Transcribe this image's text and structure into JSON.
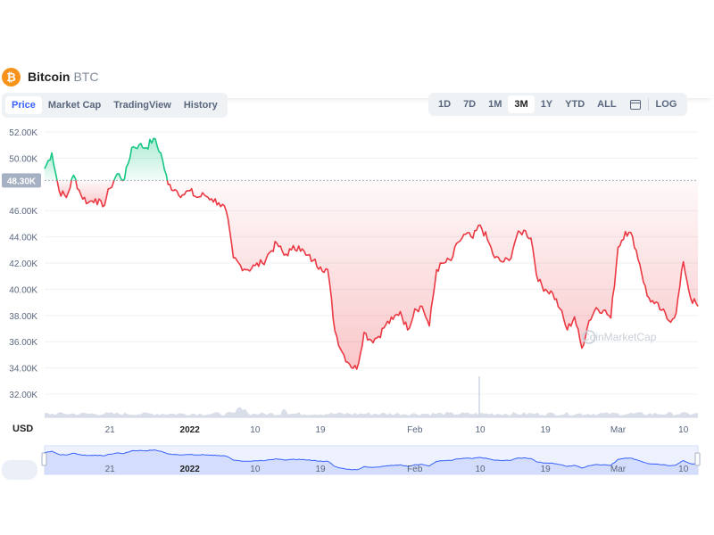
{
  "header": {
    "coin_glyph": "₿",
    "name": "Bitcoin",
    "symbol": "BTC"
  },
  "tabs": [
    {
      "label": "Price",
      "active": true
    },
    {
      "label": "Market Cap",
      "active": false
    },
    {
      "label": "TradingView",
      "active": false
    },
    {
      "label": "History",
      "active": false
    }
  ],
  "ranges": [
    {
      "label": "1D",
      "active": false
    },
    {
      "label": "7D",
      "active": false
    },
    {
      "label": "1M",
      "active": false
    },
    {
      "label": "3M",
      "active": true
    },
    {
      "label": "1Y",
      "active": false
    },
    {
      "label": "YTD",
      "active": false
    },
    {
      "label": "ALL",
      "active": false
    }
  ],
  "log_label": "LOG",
  "currency_label": "USD",
  "watermark": "CoinMarketCap",
  "colors": {
    "up": "#16c784",
    "down": "#ea3943",
    "accent": "#3861fb"
  },
  "chart_data": {
    "type": "line",
    "title": "",
    "xlabel": "",
    "ylabel": "",
    "baseline": 48300,
    "baseline_label": "48.30K",
    "ylim": [
      30000,
      53000
    ],
    "y_ticks": [
      {
        "v": 32000,
        "label": "32.00K"
      },
      {
        "v": 34000,
        "label": "34.00K"
      },
      {
        "v": 36000,
        "label": "36.00K"
      },
      {
        "v": 38000,
        "label": "38.00K"
      },
      {
        "v": 40000,
        "label": "40.00K"
      },
      {
        "v": 42000,
        "label": "42.00K"
      },
      {
        "v": 44000,
        "label": "44.00K"
      },
      {
        "v": 46000,
        "label": "46.00K"
      },
      {
        "v": 50000,
        "label": "50.00K"
      },
      {
        "v": 52000,
        "label": "52.00K"
      }
    ],
    "x_ticks": [
      {
        "date": "2021-12-21",
        "label": "21"
      },
      {
        "date": "2022-01-01",
        "label": "2022"
      },
      {
        "date": "2022-01-10",
        "label": "10"
      },
      {
        "date": "2022-01-19",
        "label": "19"
      },
      {
        "date": "2022-02-01",
        "label": "Feb"
      },
      {
        "date": "2022-02-10",
        "label": "10"
      },
      {
        "date": "2022-02-19",
        "label": "19"
      },
      {
        "date": "2022-03-01",
        "label": "Mar"
      },
      {
        "date": "2022-03-10",
        "label": "10"
      }
    ],
    "x_range": [
      "2021-12-12",
      "2022-03-12"
    ],
    "series": [
      {
        "points": [
          [
            "2021-12-12",
            49200
          ],
          [
            "2021-12-13",
            50400
          ],
          [
            "2021-12-14",
            47500
          ],
          [
            "2021-12-15",
            47000
          ],
          [
            "2021-12-16",
            48700
          ],
          [
            "2021-12-17",
            47200
          ],
          [
            "2021-12-18",
            46600
          ],
          [
            "2021-12-19",
            46900
          ],
          [
            "2021-12-20",
            46300
          ],
          [
            "2021-12-21",
            47700
          ],
          [
            "2021-12-22",
            48800
          ],
          [
            "2021-12-23",
            48400
          ],
          [
            "2021-12-24",
            50800
          ],
          [
            "2021-12-25",
            51000
          ],
          [
            "2021-12-26",
            50800
          ],
          [
            "2021-12-27",
            51500
          ],
          [
            "2021-12-28",
            50400
          ],
          [
            "2021-12-29",
            48000
          ],
          [
            "2021-12-30",
            47600
          ],
          [
            "2021-12-31",
            47200
          ],
          [
            "2022-01-01",
            47500
          ],
          [
            "2022-01-02",
            47000
          ],
          [
            "2022-01-03",
            47200
          ],
          [
            "2022-01-04",
            46900
          ],
          [
            "2022-01-05",
            46600
          ],
          [
            "2022-01-06",
            46000
          ],
          [
            "2022-01-07",
            42400
          ],
          [
            "2022-01-08",
            41800
          ],
          [
            "2022-01-09",
            41500
          ],
          [
            "2022-01-10",
            41800
          ],
          [
            "2022-01-11",
            42000
          ],
          [
            "2022-01-12",
            42800
          ],
          [
            "2022-01-13",
            43500
          ],
          [
            "2022-01-14",
            42600
          ],
          [
            "2022-01-15",
            43000
          ],
          [
            "2022-01-16",
            43300
          ],
          [
            "2022-01-17",
            42600
          ],
          [
            "2022-01-18",
            42200
          ],
          [
            "2022-01-19",
            41700
          ],
          [
            "2022-01-20",
            41500
          ],
          [
            "2022-01-21",
            36800
          ],
          [
            "2022-01-22",
            35200
          ],
          [
            "2022-01-23",
            34300
          ],
          [
            "2022-01-24",
            33900
          ],
          [
            "2022-01-25",
            36700
          ],
          [
            "2022-01-26",
            36100
          ],
          [
            "2022-01-27",
            36400
          ],
          [
            "2022-01-28",
            37300
          ],
          [
            "2022-01-29",
            37700
          ],
          [
            "2022-01-30",
            38300
          ],
          [
            "2022-01-31",
            36900
          ],
          [
            "2022-02-01",
            38500
          ],
          [
            "2022-02-02",
            38700
          ],
          [
            "2022-02-03",
            37200
          ],
          [
            "2022-02-04",
            41500
          ],
          [
            "2022-02-05",
            42000
          ],
          [
            "2022-02-06",
            42200
          ],
          [
            "2022-02-07",
            43600
          ],
          [
            "2022-02-08",
            44200
          ],
          [
            "2022-02-09",
            43900
          ],
          [
            "2022-02-10",
            44900
          ],
          [
            "2022-02-11",
            43800
          ],
          [
            "2022-02-12",
            42400
          ],
          [
            "2022-02-13",
            42100
          ],
          [
            "2022-02-14",
            42200
          ],
          [
            "2022-02-15",
            44000
          ],
          [
            "2022-02-16",
            44500
          ],
          [
            "2022-02-17",
            43900
          ],
          [
            "2022-02-18",
            40600
          ],
          [
            "2022-02-19",
            40000
          ],
          [
            "2022-02-20",
            39700
          ],
          [
            "2022-02-21",
            38500
          ],
          [
            "2022-02-22",
            36900
          ],
          [
            "2022-02-23",
            37900
          ],
          [
            "2022-02-24",
            35500
          ],
          [
            "2022-02-25",
            37600
          ],
          [
            "2022-02-26",
            38600
          ],
          [
            "2022-02-27",
            38400
          ],
          [
            "2022-02-28",
            37800
          ],
          [
            "2022-03-01",
            43200
          ],
          [
            "2022-03-02",
            44400
          ],
          [
            "2022-03-03",
            44000
          ],
          [
            "2022-03-04",
            41900
          ],
          [
            "2022-03-05",
            39500
          ],
          [
            "2022-03-06",
            38900
          ],
          [
            "2022-03-07",
            38400
          ],
          [
            "2022-03-08",
            37600
          ],
          [
            "2022-03-09",
            38200
          ],
          [
            "2022-03-10",
            42100
          ],
          [
            "2022-03-11",
            39300
          ],
          [
            "2022-03-12",
            38700
          ]
        ]
      }
    ]
  }
}
